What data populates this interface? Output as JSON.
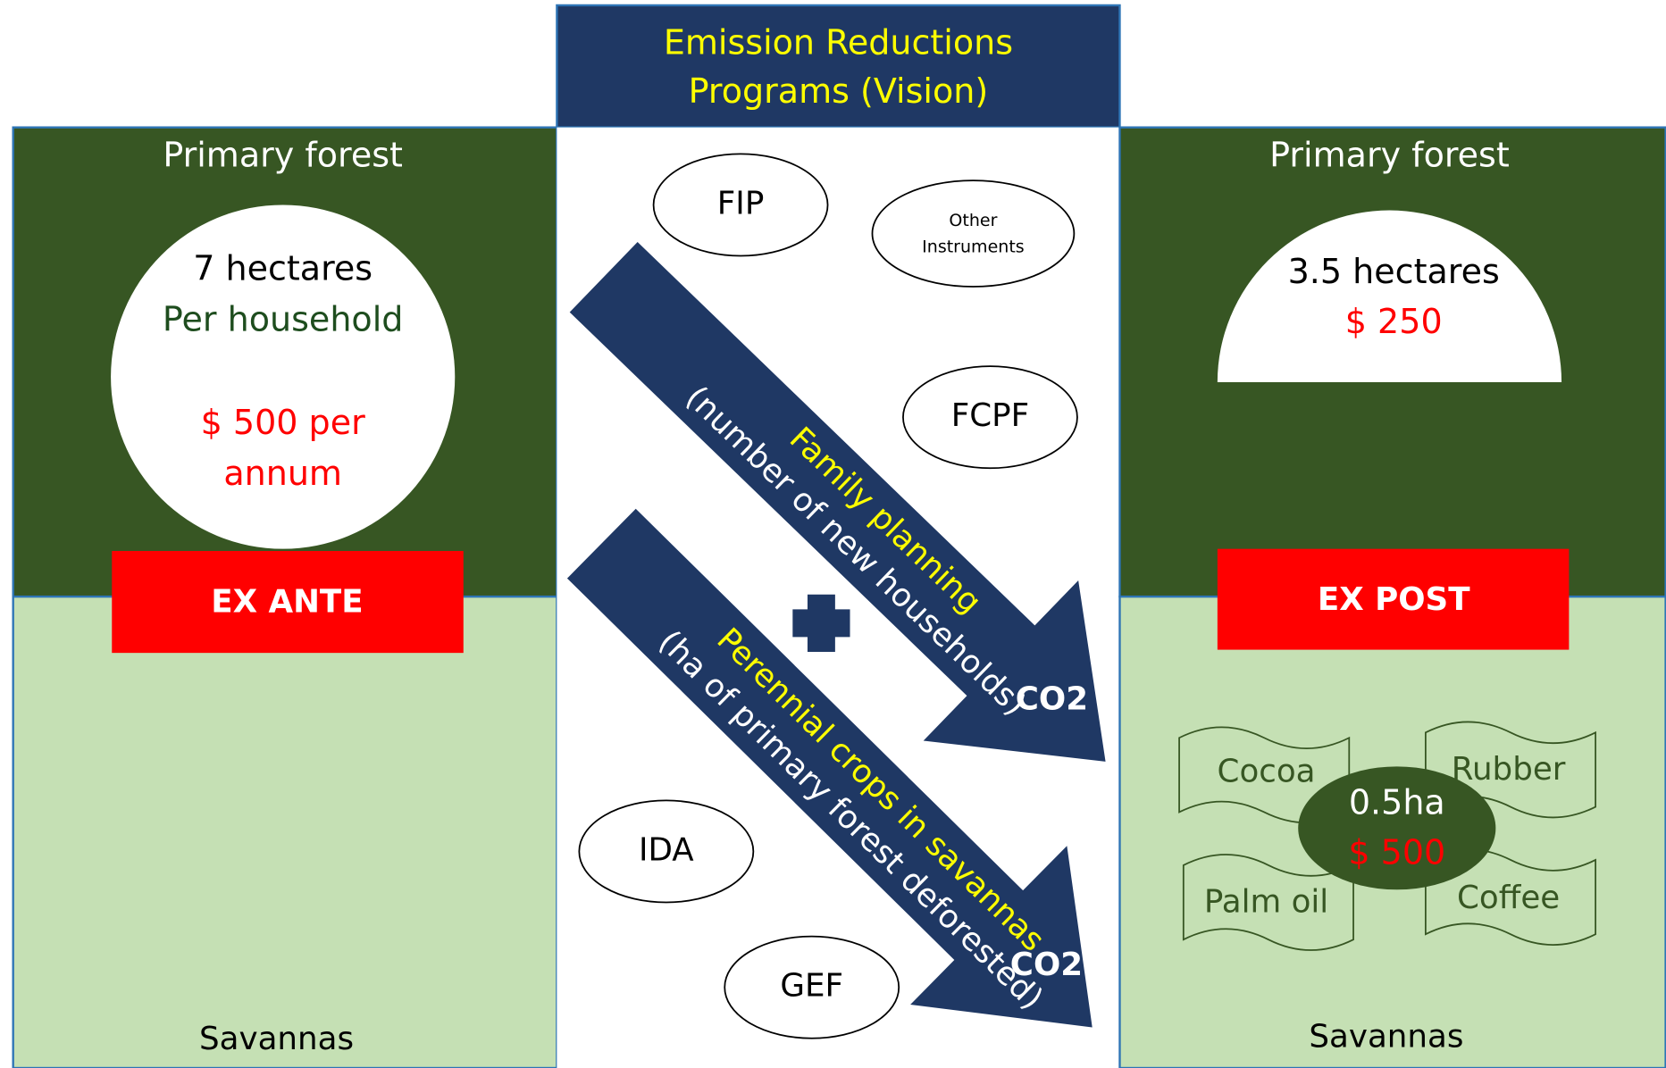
{
  "header": {
    "lines": [
      "Emission Reductions",
      "Programs (Vision)"
    ]
  },
  "left": {
    "top_label": "Primary forest",
    "circle": [
      "7 hectares",
      "Per household",
      "$ 500 per",
      "annum"
    ],
    "badge": "EX ANTE",
    "bottom_label": "Savannas"
  },
  "middle": {
    "instruments": [
      "FIP",
      "Other",
      "Instruments",
      "FCPF",
      "IDA",
      "GEF"
    ],
    "arrows": [
      {
        "title": "Family planning",
        "subtitle": "(number of new households)",
        "end": "CO2"
      },
      {
        "title": "Perennial crops in savannas",
        "subtitle": "(ha of primary forest deforested)",
        "end": "CO2"
      }
    ]
  },
  "right": {
    "top_label": "Primary forest",
    "semicircle": [
      "3.5 hectares",
      "$ 250"
    ],
    "badge": "EX POST",
    "crops": [
      "Cocoa",
      "Rubber",
      "Palm oil",
      "Coffee"
    ],
    "center": [
      "0.5ha",
      "$ 500"
    ],
    "bottom_label": "Savannas"
  }
}
